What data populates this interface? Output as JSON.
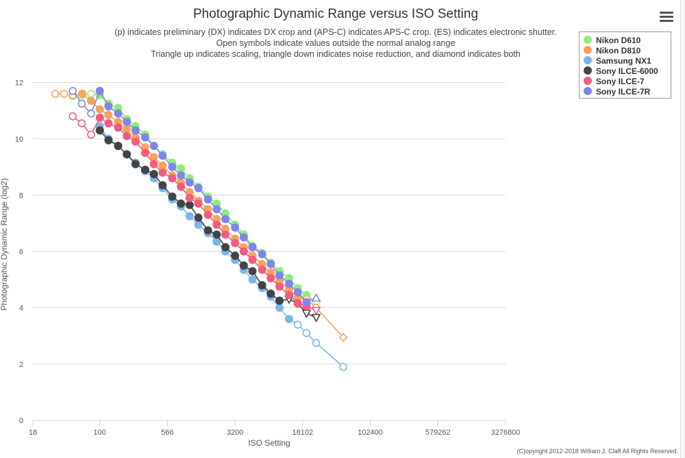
{
  "header": {
    "title": "Photographic Dynamic Range versus ISO Setting",
    "subtitle_lines": [
      "(p) indicates preliminary (DX) indicates DX crop and (APS-C) indicates APS-C crop. (ES) indicates electronic shutter.",
      "Open symbols indicate values outside the normal analog range",
      "Triangle up indicates scaling, triangle down indicates noise reduction, and diamond indicates both"
    ]
  },
  "menu": {
    "icon": "hamburger-menu-icon"
  },
  "footer": {
    "copyright": "(C)opyright 2012-2018 William J. Claff All Rights Reserved."
  },
  "chart_data": {
    "type": "line",
    "title": "Photographic Dynamic Range versus ISO Setting",
    "xlabel": "ISO Setting",
    "ylabel": "Photographic Dynamic Range (log2)",
    "xscale": "log2",
    "x_ticks": [
      18,
      100,
      566,
      3200,
      18102,
      102400,
      579262,
      3276800
    ],
    "x_tick_labels": [
      "18",
      "100",
      "566",
      "3200",
      "18102",
      "102400",
      "579262",
      "3276800"
    ],
    "xlim": [
      18,
      3276800
    ],
    "ylim": [
      0,
      12.5
    ],
    "y_ticks": [
      0,
      2,
      4,
      6,
      8,
      10,
      12
    ],
    "legend_position": "top-right",
    "series": [
      {
        "name": "Nikon D610",
        "color": "#90ed7d",
        "points": [
          {
            "x": 50,
            "y": 11.52,
            "open": true
          },
          {
            "x": 63,
            "y": 11.55,
            "open": true
          },
          {
            "x": 80,
            "y": 11.6,
            "open": true
          },
          {
            "x": 100,
            "y": 11.55
          },
          {
            "x": 125,
            "y": 11.25
          },
          {
            "x": 160,
            "y": 11.1
          },
          {
            "x": 200,
            "y": 10.7
          },
          {
            "x": 250,
            "y": 10.45
          },
          {
            "x": 320,
            "y": 10.15
          },
          {
            "x": 400,
            "y": 9.75
          },
          {
            "x": 500,
            "y": 9.45
          },
          {
            "x": 640,
            "y": 9.15
          },
          {
            "x": 800,
            "y": 8.95
          },
          {
            "x": 1000,
            "y": 8.6
          },
          {
            "x": 1250,
            "y": 8.3
          },
          {
            "x": 1600,
            "y": 7.95
          },
          {
            "x": 2000,
            "y": 7.7
          },
          {
            "x": 2500,
            "y": 7.35
          },
          {
            "x": 3200,
            "y": 6.95
          },
          {
            "x": 4000,
            "y": 6.6
          },
          {
            "x": 5000,
            "y": 6.2
          },
          {
            "x": 6400,
            "y": 5.95
          },
          {
            "x": 8000,
            "y": 5.6
          },
          {
            "x": 10000,
            "y": 5.3
          },
          {
            "x": 12800,
            "y": 5.05
          },
          {
            "x": 16000,
            "y": 4.7
          },
          {
            "x": 20000,
            "y": 4.45
          },
          {
            "x": 25600,
            "y": 4.2,
            "open": true,
            "marker": "diamond"
          }
        ]
      },
      {
        "name": "Nikon D810",
        "color": "#f7a35c",
        "points": [
          {
            "x": 32,
            "y": 11.6,
            "open": true
          },
          {
            "x": 40,
            "y": 11.6,
            "open": true
          },
          {
            "x": 50,
            "y": 11.55,
            "open": true
          },
          {
            "x": 64,
            "y": 11.6
          },
          {
            "x": 80,
            "y": 11.35
          },
          {
            "x": 100,
            "y": 11.05
          },
          {
            "x": 125,
            "y": 10.85
          },
          {
            "x": 160,
            "y": 10.6
          },
          {
            "x": 200,
            "y": 10.35
          },
          {
            "x": 250,
            "y": 10.05
          },
          {
            "x": 320,
            "y": 9.7
          },
          {
            "x": 400,
            "y": 9.35
          },
          {
            "x": 500,
            "y": 9.05
          },
          {
            "x": 640,
            "y": 8.7
          },
          {
            "x": 800,
            "y": 8.45
          },
          {
            "x": 1000,
            "y": 8.1
          },
          {
            "x": 1250,
            "y": 7.8
          },
          {
            "x": 1600,
            "y": 7.5
          },
          {
            "x": 2000,
            "y": 7.15
          },
          {
            "x": 2500,
            "y": 6.8
          },
          {
            "x": 3200,
            "y": 6.45
          },
          {
            "x": 4000,
            "y": 6.15
          },
          {
            "x": 5000,
            "y": 5.85
          },
          {
            "x": 6400,
            "y": 5.55
          },
          {
            "x": 8000,
            "y": 5.25
          },
          {
            "x": 10000,
            "y": 4.95
          },
          {
            "x": 12800,
            "y": 4.65
          },
          {
            "x": 16000,
            "y": 4.35
          },
          {
            "x": 20000,
            "y": 4.3,
            "open": true
          },
          {
            "x": 25600,
            "y": 4.0,
            "open": true
          },
          {
            "x": 51200,
            "y": 2.95,
            "open": true,
            "marker": "diamond"
          }
        ]
      },
      {
        "name": "Samsung NX1",
        "color": "#7cb5ec",
        "points": [
          {
            "x": 100,
            "y": 10.45
          },
          {
            "x": 125,
            "y": 10.0
          },
          {
            "x": 160,
            "y": 9.75
          },
          {
            "x": 200,
            "y": 9.45
          },
          {
            "x": 250,
            "y": 9.15
          },
          {
            "x": 320,
            "y": 8.85
          },
          {
            "x": 400,
            "y": 8.6
          },
          {
            "x": 500,
            "y": 8.25
          },
          {
            "x": 640,
            "y": 7.85
          },
          {
            "x": 800,
            "y": 7.6
          },
          {
            "x": 1000,
            "y": 7.25
          },
          {
            "x": 1250,
            "y": 6.95
          },
          {
            "x": 1600,
            "y": 6.65
          },
          {
            "x": 2000,
            "y": 6.35
          },
          {
            "x": 2500,
            "y": 6.0
          },
          {
            "x": 3200,
            "y": 5.7
          },
          {
            "x": 4000,
            "y": 5.35
          },
          {
            "x": 5000,
            "y": 5.0
          },
          {
            "x": 6400,
            "y": 4.7
          },
          {
            "x": 8000,
            "y": 4.4
          },
          {
            "x": 10000,
            "y": 4.0
          },
          {
            "x": 12800,
            "y": 3.6
          },
          {
            "x": 16000,
            "y": 3.4,
            "open": true
          },
          {
            "x": 20000,
            "y": 3.1,
            "open": true
          },
          {
            "x": 25600,
            "y": 2.75,
            "open": true
          },
          {
            "x": 51200,
            "y": 1.9,
            "open": true
          }
        ]
      },
      {
        "name": "Sony ILCE-6000",
        "color": "#434348",
        "points": [
          {
            "x": 100,
            "y": 10.3
          },
          {
            "x": 125,
            "y": 9.95
          },
          {
            "x": 160,
            "y": 9.75
          },
          {
            "x": 200,
            "y": 9.45
          },
          {
            "x": 250,
            "y": 9.1
          },
          {
            "x": 320,
            "y": 8.9
          },
          {
            "x": 400,
            "y": 8.75
          },
          {
            "x": 500,
            "y": 8.35
          },
          {
            "x": 640,
            "y": 7.95
          },
          {
            "x": 800,
            "y": 7.7
          },
          {
            "x": 1000,
            "y": 7.65
          },
          {
            "x": 1250,
            "y": 7.2
          },
          {
            "x": 1600,
            "y": 6.75
          },
          {
            "x": 2000,
            "y": 6.6
          },
          {
            "x": 2500,
            "y": 6.15
          },
          {
            "x": 3200,
            "y": 5.85
          },
          {
            "x": 4000,
            "y": 5.5
          },
          {
            "x": 5000,
            "y": 5.3
          },
          {
            "x": 6400,
            "y": 4.8
          },
          {
            "x": 8000,
            "y": 4.5
          },
          {
            "x": 10000,
            "y": 4.25
          },
          {
            "x": 12800,
            "y": 4.3,
            "open": true,
            "marker": "triangle-down"
          },
          {
            "x": 16000,
            "y": 4.15
          },
          {
            "x": 20000,
            "y": 3.8,
            "open": true,
            "marker": "triangle-down"
          },
          {
            "x": 25600,
            "y": 3.65,
            "open": true,
            "marker": "triangle-down"
          }
        ]
      },
      {
        "name": "Sony ILCE-7",
        "color": "#f15c80",
        "points": [
          {
            "x": 50,
            "y": 10.8,
            "open": true
          },
          {
            "x": 63,
            "y": 10.55,
            "open": true
          },
          {
            "x": 80,
            "y": 10.15,
            "open": true
          },
          {
            "x": 100,
            "y": 10.75
          },
          {
            "x": 125,
            "y": 10.55
          },
          {
            "x": 160,
            "y": 10.4
          },
          {
            "x": 200,
            "y": 10.1
          },
          {
            "x": 250,
            "y": 9.9
          },
          {
            "x": 320,
            "y": 9.5
          },
          {
            "x": 400,
            "y": 9.1
          },
          {
            "x": 500,
            "y": 8.8
          },
          {
            "x": 640,
            "y": 8.6
          },
          {
            "x": 800,
            "y": 8.3
          },
          {
            "x": 1000,
            "y": 7.9
          },
          {
            "x": 1250,
            "y": 7.7
          },
          {
            "x": 1600,
            "y": 7.3
          },
          {
            "x": 2000,
            "y": 6.95
          },
          {
            "x": 2500,
            "y": 6.6
          },
          {
            "x": 3200,
            "y": 6.3
          },
          {
            "x": 4000,
            "y": 6.0
          },
          {
            "x": 5000,
            "y": 5.7
          },
          {
            "x": 6400,
            "y": 5.35
          },
          {
            "x": 8000,
            "y": 5.05
          },
          {
            "x": 10000,
            "y": 4.75
          },
          {
            "x": 12800,
            "y": 4.45
          },
          {
            "x": 16000,
            "y": 4.15
          },
          {
            "x": 20000,
            "y": 4.05
          },
          {
            "x": 25600,
            "y": 3.9,
            "open": true,
            "marker": "triangle-down"
          }
        ]
      },
      {
        "name": "Sony ILCE-7R",
        "color": "#8085e9",
        "points": [
          {
            "x": 50,
            "y": 11.7,
            "open": true
          },
          {
            "x": 63,
            "y": 11.25,
            "open": true
          },
          {
            "x": 80,
            "y": 10.9,
            "open": true
          },
          {
            "x": 100,
            "y": 11.7
          },
          {
            "x": 125,
            "y": 11.15
          },
          {
            "x": 160,
            "y": 10.9
          },
          {
            "x": 200,
            "y": 10.6
          },
          {
            "x": 250,
            "y": 10.3
          },
          {
            "x": 320,
            "y": 10.05
          },
          {
            "x": 400,
            "y": 9.75
          },
          {
            "x": 500,
            "y": 9.4
          },
          {
            "x": 640,
            "y": 9.0
          },
          {
            "x": 800,
            "y": 8.7
          },
          {
            "x": 1000,
            "y": 8.45
          },
          {
            "x": 1250,
            "y": 8.25
          },
          {
            "x": 1600,
            "y": 7.85
          },
          {
            "x": 2000,
            "y": 7.5
          },
          {
            "x": 2500,
            "y": 7.15
          },
          {
            "x": 3200,
            "y": 6.85
          },
          {
            "x": 4000,
            "y": 6.5
          },
          {
            "x": 5000,
            "y": 6.15
          },
          {
            "x": 6400,
            "y": 5.9
          },
          {
            "x": 8000,
            "y": 5.55
          },
          {
            "x": 10000,
            "y": 5.15
          },
          {
            "x": 12800,
            "y": 4.85
          },
          {
            "x": 16000,
            "y": 4.55
          },
          {
            "x": 20000,
            "y": 4.2
          },
          {
            "x": 25600,
            "y": 4.35,
            "open": true,
            "marker": "triangle-up"
          }
        ]
      }
    ]
  }
}
